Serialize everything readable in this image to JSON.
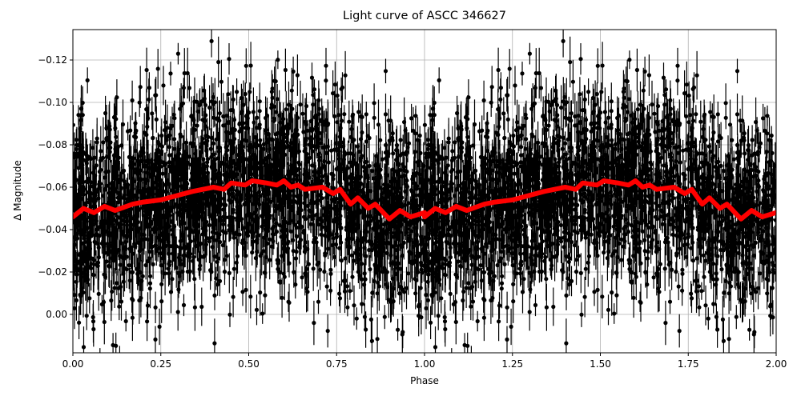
{
  "chart_data": {
    "type": "scatter",
    "title": "Light curve of ASCC 346627",
    "xlabel": "Phase",
    "ylabel": "Δ Magnitude",
    "xlim": [
      0.0,
      2.0
    ],
    "ylim": [
      0.0185,
      -0.135
    ],
    "y_inverted": true,
    "grid": true,
    "xticks": [
      0.0,
      0.25,
      0.5,
      0.75,
      1.0,
      1.25,
      1.5,
      1.75,
      2.0
    ],
    "xtick_labels": [
      "0.00",
      "0.25",
      "0.50",
      "0.75",
      "1.00",
      "1.25",
      "1.50",
      "1.75",
      "2.00"
    ],
    "yticks": [
      0.0,
      -0.02,
      -0.04,
      -0.06,
      -0.08,
      -0.1,
      -0.12
    ],
    "ytick_labels": [
      "0.00",
      "−0.02",
      "−0.04",
      "−0.06",
      "−0.08",
      "−0.10",
      "−0.12"
    ],
    "series": [
      {
        "name": "observations",
        "style": "black points with vertical error bars",
        "color": "#000000",
        "description": "Dense phase-folded photometry, centered near -0.055 mag with scatter spanning the full y range"
      },
      {
        "name": "binned curve",
        "style": "thick red line",
        "color": "#ff0000",
        "x": [
          0.0,
          0.03,
          0.06,
          0.09,
          0.12,
          0.17,
          0.2,
          0.25,
          0.34,
          0.4,
          0.43,
          0.45,
          0.49,
          0.51,
          0.55,
          0.58,
          0.6,
          0.62,
          0.64,
          0.66,
          0.71,
          0.74,
          0.76,
          0.79,
          0.81,
          0.84,
          0.86,
          0.9,
          0.93,
          0.96,
          1.0
        ],
        "y": [
          -0.046,
          -0.05,
          -0.048,
          -0.051,
          -0.049,
          -0.052,
          -0.053,
          -0.054,
          -0.058,
          -0.06,
          -0.059,
          -0.062,
          -0.061,
          -0.063,
          -0.062,
          -0.061,
          -0.063,
          -0.06,
          -0.061,
          -0.059,
          -0.06,
          -0.057,
          -0.059,
          -0.052,
          -0.055,
          -0.05,
          -0.052,
          -0.045,
          -0.049,
          -0.046,
          -0.048
        ]
      }
    ]
  }
}
